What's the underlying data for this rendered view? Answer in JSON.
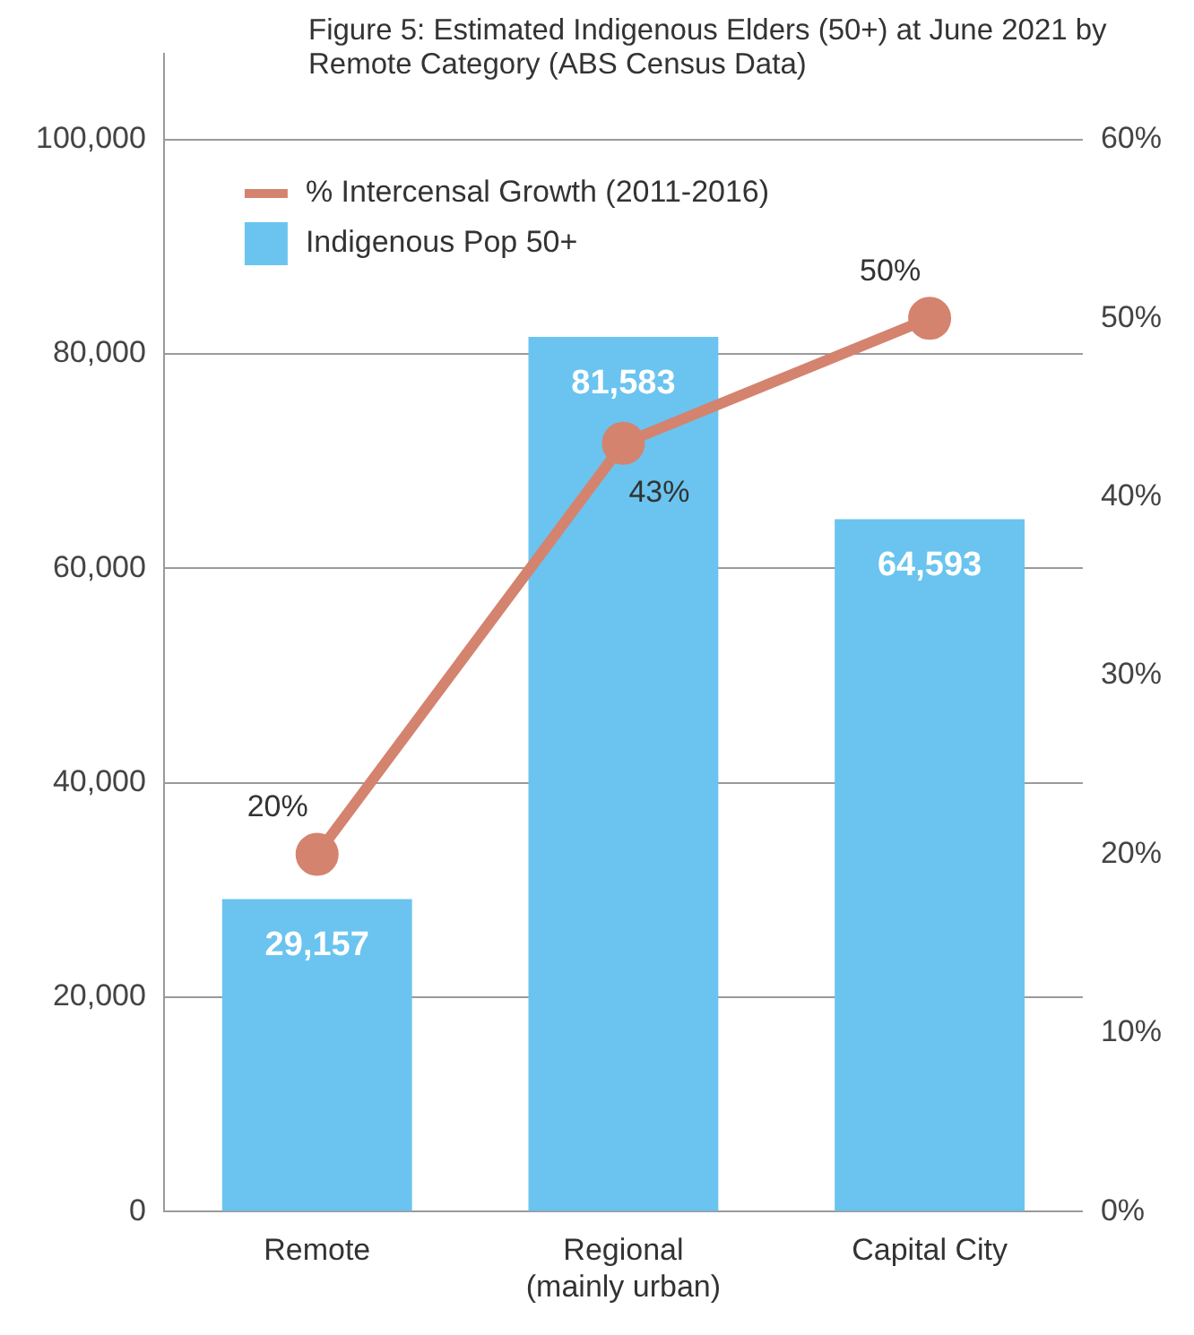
{
  "chart_data": {
    "type": "bar",
    "title": "Figure 5: Estimated Indigenous Elders (50+) at June 2021 by Remote Category (ABS Census Data)",
    "categories": [
      "Remote",
      "Regional\n(mainly urban)",
      "Capital City"
    ],
    "series": [
      {
        "name": "% Intercensal Growth (2011-2016)",
        "type": "line",
        "axis": "y2",
        "color": "#d4836f",
        "values": [
          20,
          43,
          50
        ],
        "value_labels": [
          "20%",
          "43%",
          "50%"
        ],
        "marker": "circle"
      },
      {
        "name": "Indigenous Pop 50+",
        "color": "#6ac4ef",
        "values": [
          29157,
          81583,
          64593
        ],
        "value_labels": [
          "29,157",
          "81,583",
          "64,593"
        ]
      }
    ],
    "ylim": [
      0,
      108000
    ],
    "yticks": [
      {
        "value": 0,
        "label": "0"
      },
      {
        "value": 20000,
        "label": "20,000"
      },
      {
        "value": 40000,
        "label": "40,000"
      },
      {
        "value": 60000,
        "label": "60,000"
      },
      {
        "value": 80000,
        "label": "80,000"
      },
      {
        "value": 100000,
        "label": "100,000"
      }
    ],
    "y2lim": [
      0,
      64.8
    ],
    "y2ticks": [
      {
        "value": 0,
        "label": "0%"
      },
      {
        "value": 10,
        "label": "10%"
      },
      {
        "value": 20,
        "label": "20%"
      },
      {
        "value": 30,
        "label": "30%"
      },
      {
        "value": 40,
        "label": "40%"
      },
      {
        "value": 50,
        "label": "50%"
      },
      {
        "value": 60,
        "label": "60%"
      }
    ],
    "grid": "y",
    "legend": "top left"
  }
}
